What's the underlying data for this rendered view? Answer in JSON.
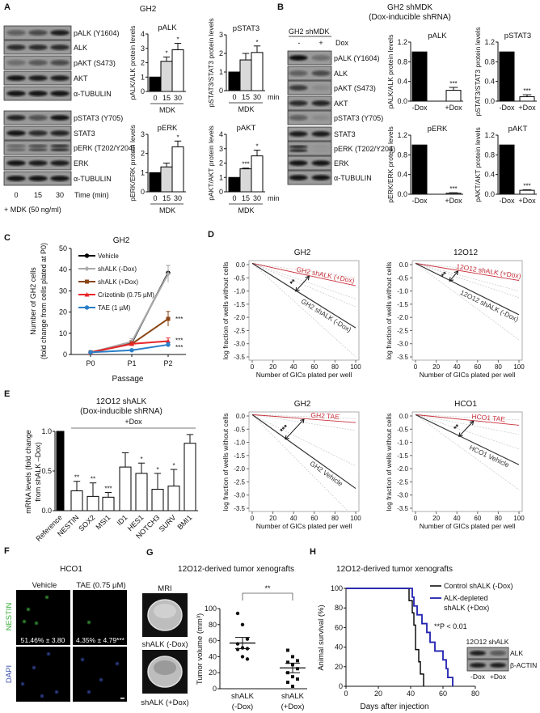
{
  "figure": {
    "A": {
      "label": "A",
      "title": "GH2",
      "blot_rows_1": [
        {
          "name": "pALK (Y1604)",
          "bands": [
            0.45,
            0.6,
            0.9
          ]
        },
        {
          "name": "ALK",
          "bands": [
            0.8,
            0.8,
            0.8
          ]
        },
        {
          "name": "pAKT (S473)",
          "bands": [
            0.35,
            0.5,
            0.6
          ]
        },
        {
          "name": "AKT",
          "bands": [
            0.95,
            0.9,
            0.9
          ]
        },
        {
          "name": "α-TUBULIN",
          "bands": [
            0.95,
            0.95,
            0.95
          ]
        }
      ],
      "blot_rows_2": [
        {
          "name": "pSTAT3 (Y705)",
          "bands": [
            0.85,
            0.55,
            0.95
          ]
        },
        {
          "name": "STAT3",
          "bands": [
            0.95,
            0.8,
            0.85
          ]
        },
        {
          "name": "pERK (T202/Y204)",
          "bands": [
            0.45,
            0.65,
            0.85
          ]
        },
        {
          "name": "ERK",
          "bands": [
            0.95,
            0.9,
            0.9
          ]
        },
        {
          "name": "α-TUBULIN",
          "bands": [
            0.95,
            0.95,
            0.95
          ]
        }
      ],
      "lanes": [
        "0",
        "15",
        "30"
      ],
      "lane_unit": "Time (min)",
      "treatment": "+ MDK (50 ng/ml)"
    },
    "B": {
      "label": "B",
      "title": "GH2 shMDK",
      "subtitle": "(Dox-inducible shRNA)",
      "blot_header": "GH2 shMDK",
      "lanes": [
        "-",
        "+"
      ],
      "lane_unit": "Dox",
      "blot_rows": [
        {
          "name": "pALK (Y1604)",
          "bands": [
            1.0,
            0.35
          ]
        },
        {
          "name": "ALK",
          "bands": [
            0.45,
            0.6
          ]
        },
        {
          "name": "pAKT (S473)",
          "bands": [
            0.7,
            0.1
          ]
        },
        {
          "name": "AKT",
          "bands": [
            0.8,
            0.85
          ]
        },
        {
          "name": "pSTAT3 (Y705)",
          "bands": [
            0.45,
            0.1
          ]
        },
        {
          "name": "STAT3",
          "bands": [
            0.9,
            0.9
          ]
        },
        {
          "name": "pERK (T202/Y204)",
          "bands": [
            0.9,
            0.05
          ]
        },
        {
          "name": "ERK",
          "bands": [
            0.95,
            0.95
          ]
        },
        {
          "name": "α-TUBULIN",
          "bands": [
            0.95,
            0.95
          ]
        }
      ]
    },
    "C": {
      "label": "C"
    },
    "D": {
      "label": "D"
    },
    "E": {
      "label": "E"
    },
    "F": {
      "label": "F",
      "title": "HCO1",
      "columns": [
        "Vehicle",
        "TAE (0.75 µM)"
      ],
      "rows": [
        "NESTIN",
        "DAPI"
      ],
      "quant": [
        "51.46% ± 3.80",
        "4.35% ± 4.79***"
      ],
      "colors": {
        "NESTIN": "#3fae3f",
        "DAPI": "#3a4fb0"
      }
    },
    "G": {
      "label": "G",
      "title": "12O12-derived tumor xenografts",
      "mri_label": "MRI",
      "mri_captions": [
        "shALK (-Dox)",
        "shALK (+Dox)"
      ]
    },
    "H": {
      "label": "H",
      "inset": {
        "title": "12O12 shALK",
        "rows": [
          "ALK",
          "β-ACTIN"
        ],
        "lanes": [
          "-Dox",
          "+Dox"
        ]
      }
    }
  },
  "chart_data": [
    {
      "type": "bar",
      "title": "pALK",
      "ylabel": "pALK/ALK protein levels",
      "categories": [
        "0",
        "15",
        "30"
      ],
      "values": [
        1,
        2.1,
        2.9
      ],
      "errors": [
        0,
        0.3,
        0.45
      ],
      "significance": [
        "",
        "*",
        "*"
      ],
      "xgroup": "MDK",
      "ylim": [
        0,
        4
      ],
      "yticks": [
        "0",
        "1",
        "2",
        "3",
        "4"
      ],
      "colors": [
        "#000000",
        "#d9d9d9",
        "#ffffff"
      ]
    },
    {
      "type": "bar",
      "title": "pSTAT3",
      "ylabel": "pSTAT3/STAT3 protein levels",
      "categories": [
        "0",
        "15",
        "30"
      ],
      "values": [
        1,
        1.65,
        2.05
      ],
      "errors": [
        0,
        0.35,
        0.35
      ],
      "significance": [
        "",
        "",
        "*"
      ],
      "xgroup": "MDK",
      "xunit": "min",
      "ylim": [
        0,
        3
      ],
      "yticks": [
        "0",
        "1",
        "2",
        "3"
      ],
      "colors": [
        "#000000",
        "#d9d9d9",
        "#ffffff"
      ]
    },
    {
      "type": "bar",
      "title": "pERK",
      "ylabel": "pERK/ERK protein levels",
      "categories": [
        "0",
        "15",
        "30"
      ],
      "values": [
        1,
        1.3,
        2.35
      ],
      "errors": [
        0,
        0.2,
        0.3
      ],
      "significance": [
        "",
        "",
        "*"
      ],
      "xgroup": "MDK",
      "ylim": [
        0,
        3
      ],
      "yticks": [
        "0",
        "1",
        "2",
        "3"
      ],
      "colors": [
        "#000000",
        "#d9d9d9",
        "#ffffff"
      ]
    },
    {
      "type": "bar",
      "title": "pAKT",
      "ylabel": "pAKT/AKT protein levels",
      "categories": [
        "0",
        "15",
        "30"
      ],
      "values": [
        1,
        1.6,
        2.5
      ],
      "errors": [
        0,
        0.05,
        0.4
      ],
      "significance": [
        "",
        "***",
        "*"
      ],
      "xgroup": "MDK",
      "xunit": "min",
      "ylim": [
        0,
        4
      ],
      "yticks": [
        "0",
        "1",
        "2",
        "3",
        "4"
      ],
      "colors": [
        "#000000",
        "#d9d9d9",
        "#ffffff"
      ]
    },
    {
      "type": "bar",
      "title": "pALK",
      "ylabel": "pALK/ALK protein levels",
      "categories": [
        "-Dox",
        "+Dox"
      ],
      "values": [
        1,
        0.22
      ],
      "errors": [
        0,
        0.06
      ],
      "significance": [
        "",
        "***"
      ],
      "ylim": [
        0,
        1.2
      ],
      "yticks": [
        "0.0",
        "0.4",
        "0.8",
        "1.2"
      ],
      "colors": [
        "#000000",
        "#ffffff"
      ]
    },
    {
      "type": "bar",
      "title": "pSTAT3",
      "ylabel": "pSTAT3/STAT3 protein levels",
      "categories": [
        "-Dox",
        "+Dox"
      ],
      "values": [
        1,
        0.09
      ],
      "errors": [
        0,
        0.04
      ],
      "significance": [
        "",
        "***"
      ],
      "ylim": [
        0,
        1.2
      ],
      "yticks": [
        "0.0",
        "0.4",
        "0.8",
        "1.2"
      ],
      "colors": [
        "#000000",
        "#ffffff"
      ]
    },
    {
      "type": "bar",
      "title": "pERK",
      "ylabel": "pERK/ERK protein levels",
      "categories": [
        "-Dox",
        "+Dox"
      ],
      "values": [
        1,
        0.02
      ],
      "errors": [
        0,
        0.01
      ],
      "significance": [
        "",
        "***"
      ],
      "ylim": [
        0,
        1.2
      ],
      "yticks": [
        "0.0",
        "0.4",
        "0.8",
        "1.2"
      ],
      "colors": [
        "#000000",
        "#ffffff"
      ]
    },
    {
      "type": "bar",
      "title": "pAKT",
      "ylabel": "pAKT/AKT protein levels",
      "categories": [
        "-Dox",
        "+Dox"
      ],
      "values": [
        1,
        0.08
      ],
      "errors": [
        0,
        0.01
      ],
      "significance": [
        "",
        "***"
      ],
      "ylim": [
        0,
        1.2
      ],
      "yticks": [
        "0.0",
        "0.4",
        "0.8",
        "1.2"
      ],
      "colors": [
        "#000000",
        "#ffffff"
      ]
    },
    {
      "type": "line",
      "title": "GH2",
      "xlabel": "Passage",
      "ylabel": [
        "Number of GH2 cells",
        "(fold change from cells plated at P0)"
      ],
      "categories": [
        "P0",
        "P1",
        "P2"
      ],
      "ylim": [
        0,
        50
      ],
      "yticks": [
        "0",
        "10",
        "20",
        "30",
        "40",
        "50"
      ],
      "legend": "top-left",
      "series": [
        {
          "name": "Vehicle",
          "color": "#000000",
          "marker": "circle",
          "values": [
            1,
            5.5,
            38.5
          ],
          "errors": [
            0,
            1,
            3.5
          ],
          "significance": ""
        },
        {
          "name": "shALK (-Dox)",
          "color": "#a9a9a9",
          "marker": "diamond",
          "values": [
            1,
            6,
            38
          ],
          "errors": [
            0,
            1.5,
            4
          ],
          "significance": ""
        },
        {
          "name": "shALK (+Dox)",
          "color": "#8b4513",
          "marker": "square",
          "values": [
            1,
            5,
            16.8
          ],
          "errors": [
            0,
            1,
            3.5
          ],
          "significance": "***"
        },
        {
          "name": "Crizotinib (0.75 µM)",
          "color": "#e8262a",
          "marker": "triangle",
          "values": [
            1,
            5,
            6.3
          ],
          "errors": [
            0,
            1,
            1.5
          ],
          "significance": "***"
        },
        {
          "name": "TAE (1 µM)",
          "color": "#2a7fc8",
          "marker": "circle",
          "values": [
            1,
            2,
            4.6
          ],
          "errors": [
            0,
            0.5,
            1
          ],
          "significance": "***"
        }
      ]
    },
    {
      "type": "bar",
      "title": "12O12 shALK",
      "subtitle": "(Dox-inducible shRNA)",
      "group_label": "+Dox",
      "ylabel": [
        "mRNA levels (fold change",
        "from shALK –Dox)"
      ],
      "categories": [
        "Reference",
        "NESTIN",
        "SOX2",
        "MSI1",
        "ID1",
        "HES1",
        "NOTCH3",
        "SURV",
        "BMI1"
      ],
      "values": [
        1,
        0.25,
        0.18,
        0.17,
        0.55,
        0.47,
        0.27,
        0.31,
        0.85
      ],
      "errors": [
        0,
        0.12,
        0.17,
        0.06,
        0.18,
        0.13,
        0.2,
        0.21,
        0.11
      ],
      "significance": [
        "",
        "**",
        "**",
        "***",
        "",
        "*",
        "*",
        "*",
        ""
      ],
      "ylim": [
        0,
        1
      ],
      "yticks": [
        "0.0",
        "0.5",
        "1.0"
      ],
      "colors": [
        "#000000",
        "#ffffff",
        "#ffffff",
        "#ffffff",
        "#ffffff",
        "#ffffff",
        "#ffffff",
        "#ffffff",
        "#ffffff"
      ]
    },
    {
      "type": "line",
      "title": "GH2",
      "xlabel": "Number of GICs plated per well",
      "ylabel": "log fraction of wells without cells",
      "xlim": [
        0,
        100
      ],
      "ylim": [
        -3.5,
        0
      ],
      "xticks": [
        "0",
        "20",
        "40",
        "60",
        "80",
        "100"
      ],
      "yticks": [
        "0.0",
        "-0.5",
        "-1.0",
        "-1.5",
        "-2.0",
        "-2.5",
        "-3.0",
        "-3.5"
      ],
      "series": [
        {
          "name": "GH2 shALK (+Dox)",
          "color": "#c8323c",
          "x": [
            0,
            100
          ],
          "y": [
            0,
            -0.8
          ]
        },
        {
          "name": "GH2 shALK (-Dox)",
          "color": "#333333",
          "x": [
            0,
            100
          ],
          "y": [
            0,
            -2.4
          ]
        }
      ],
      "confidence_bounds_at_100": [
        -0.5,
        -1.3,
        -1.6,
        -3.5
      ],
      "significance": "**",
      "arrow_x": [
        42,
        55
      ]
    },
    {
      "type": "line",
      "title": "12O12",
      "xlabel": "Number of GICs plated per well",
      "ylabel": "log fraction of wells without cells",
      "xlim": [
        0,
        100
      ],
      "ylim": [
        -3.5,
        0
      ],
      "xticks": [
        "0",
        "20",
        "40",
        "60",
        "80",
        "100"
      ],
      "yticks": [
        "0.0",
        "-0.5",
        "-1.0",
        "-1.5",
        "-2.0",
        "-2.5",
        "-3.0",
        "-3.5"
      ],
      "series": [
        {
          "name": "12O12 shALK (+Dox)",
          "color": "#c8323c",
          "x": [
            0,
            100
          ],
          "y": [
            0,
            -0.6
          ]
        },
        {
          "name": "12O12 shALK (-Dox)",
          "color": "#333333",
          "x": [
            0,
            100
          ],
          "y": [
            0,
            -1.9
          ]
        }
      ],
      "confidence_bounds_at_100": [
        -0.35,
        -1.0,
        -1.25,
        -2.85
      ],
      "significance": "**",
      "arrow_x": [
        33,
        41
      ]
    },
    {
      "type": "line",
      "title": "GH2",
      "xlabel": "Number of GICs plated per well",
      "ylabel": "log fraction of wells without cells",
      "xlim": [
        0,
        100
      ],
      "ylim": [
        -3.5,
        0
      ],
      "xticks": [
        "0",
        "20",
        "40",
        "60",
        "80",
        "100"
      ],
      "yticks": [
        "0.0",
        "-0.5",
        "-1.0",
        "-1.5",
        "-2.0",
        "-2.5",
        "-3.0",
        "-3.5"
      ],
      "series": [
        {
          "name": "GH2 TAE",
          "color": "#c8323c",
          "x": [
            0,
            100
          ],
          "y": [
            0,
            -0.25
          ]
        },
        {
          "name": "GH2 Vehicle",
          "color": "#333333",
          "x": [
            0,
            100
          ],
          "y": [
            0,
            -2.75
          ]
        }
      ],
      "confidence_bounds_at_100": [
        -0.1,
        -0.55,
        -1.9,
        -3.9
      ],
      "significance": "***",
      "arrow_x": [
        32,
        50
      ]
    },
    {
      "type": "line",
      "title": "HCO1",
      "xlabel": "Number of GICs plated per well",
      "ylabel": "log fraction of wells without cells",
      "xlim": [
        0,
        100
      ],
      "ylim": [
        -3.5,
        0
      ],
      "xticks": [
        "0",
        "20",
        "40",
        "60",
        "80",
        "100"
      ],
      "yticks": [
        "0.0",
        "-0.5",
        "-1.0",
        "-1.5",
        "-2.0",
        "-2.5",
        "-3.0",
        "-3.5"
      ],
      "series": [
        {
          "name": "HCO1 TAE",
          "color": "#c8323c",
          "x": [
            0,
            100
          ],
          "y": [
            0,
            -0.35
          ]
        },
        {
          "name": "HCO1 Vehicle",
          "color": "#333333",
          "x": [
            0,
            100
          ],
          "y": [
            0,
            -1.85
          ]
        }
      ],
      "confidence_bounds_at_100": [
        -0.15,
        -0.7,
        -1.25,
        -2.8
      ],
      "significance": "**",
      "arrow_x": [
        42,
        56
      ]
    },
    {
      "type": "scatter",
      "ylabel": "Tumor volume (mm³)",
      "ylim": [
        0,
        100
      ],
      "yticks": [
        "0",
        "20",
        "40",
        "60",
        "80",
        "100"
      ],
      "significance": "**",
      "groups": [
        {
          "label": [
            "shALK",
            "(-Dox)"
          ],
          "marker": "circle",
          "values": [
            94,
            80,
            62,
            56,
            51,
            50,
            49,
            40,
            37
          ],
          "mean": 57,
          "sem": 7
        },
        {
          "label": [
            "shALK",
            "(+Dox)"
          ],
          "marker": "square",
          "values": [
            48,
            40,
            35,
            33,
            30,
            25,
            20,
            15,
            12,
            8,
            3
          ],
          "mean": 26,
          "sem": 6
        }
      ]
    },
    {
      "type": "line",
      "title": "12O12-derived tumor xenografts",
      "xlabel": "Days after injection",
      "ylabel": "Animal survival (%)",
      "xlim": [
        0,
        80
      ],
      "ylim": [
        0,
        100
      ],
      "xticks": [
        "0",
        "20",
        "40",
        "60",
        "80"
      ],
      "yticks": [
        "0",
        "20",
        "40",
        "60",
        "80",
        "100"
      ],
      "annotation": "**P < 0.01",
      "legend": "top-right",
      "series": [
        {
          "name": "Control shALK (-Dox)",
          "color": "#000000",
          "time": [
            0,
            39,
            41,
            42,
            43,
            45,
            46,
            48
          ],
          "survival": [
            100,
            87.5,
            75,
            62.5,
            37.5,
            25,
            12.5,
            0
          ]
        },
        {
          "name": [
            "ALK-depleted",
            "shALK (+Dox)"
          ],
          "color": "#2020b0",
          "time": [
            0,
            41,
            42,
            44,
            47,
            50,
            52,
            55,
            60,
            62,
            63,
            66
          ],
          "survival": [
            100,
            91,
            82,
            73,
            64,
            55,
            45,
            36,
            27,
            18,
            9,
            0
          ]
        }
      ]
    }
  ]
}
